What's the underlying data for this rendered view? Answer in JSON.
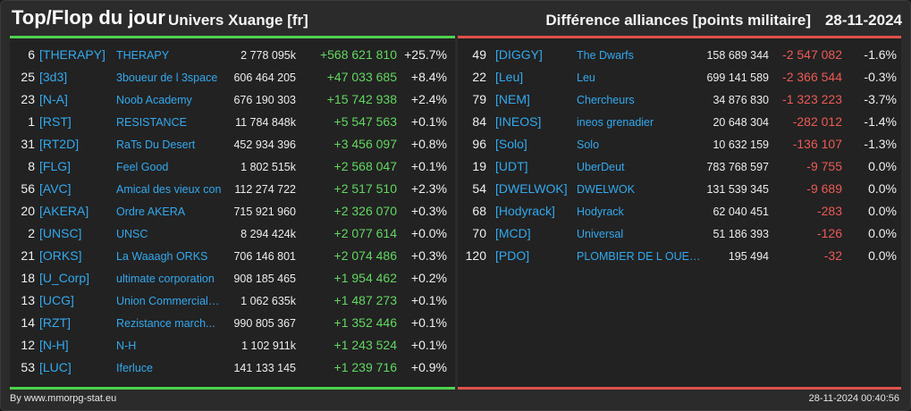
{
  "header": {
    "title": "Top/Flop du jour",
    "universe": "Univers Xuange [fr]",
    "subtitle": "Différence alliances [points militaire]",
    "date": "28-11-2024"
  },
  "colors": {
    "positive": "#62d861",
    "negative": "#ec5a55",
    "link": "#33a9ee",
    "top_border": "#4fd24f",
    "flop_border": "#e0514b"
  },
  "top": [
    {
      "rank": "6",
      "tag": "[THERAPY]",
      "name": "THERAPY",
      "points": "2 778 095k",
      "delta": "+568 621 810",
      "pct": "+25.7%"
    },
    {
      "rank": "25",
      "tag": "[3d3]",
      "name": "3boueur de l 3space",
      "points": "606 464 205",
      "delta": "+47 033 685",
      "pct": "+8.4%"
    },
    {
      "rank": "23",
      "tag": "[N-A]",
      "name": "Noob Academy",
      "points": "676 190 303",
      "delta": "+15 742 938",
      "pct": "+2.4%"
    },
    {
      "rank": "1",
      "tag": "[RST]",
      "name": "RESISTANCE",
      "points": "11 784 848k",
      "delta": "+5 547 563",
      "pct": "+0.1%"
    },
    {
      "rank": "31",
      "tag": "[RT2D]",
      "name": "RaTs Du Desert",
      "points": "452 934 396",
      "delta": "+3 456 097",
      "pct": "+0.8%"
    },
    {
      "rank": "8",
      "tag": "[FLG]",
      "name": "Feel Good",
      "points": "1 802 515k",
      "delta": "+2 568 047",
      "pct": "+0.1%"
    },
    {
      "rank": "56",
      "tag": "[AVC]",
      "name": "Amical des vieux con",
      "points": "112 274 722",
      "delta": "+2 517 510",
      "pct": "+2.3%"
    },
    {
      "rank": "20",
      "tag": "[AKERA]",
      "name": "Ordre AKERA",
      "points": "715 921 960",
      "delta": "+2 326 070",
      "pct": "+0.3%"
    },
    {
      "rank": "2",
      "tag": "[UNSC]",
      "name": "UNSC",
      "points": "8 294 424k",
      "delta": "+2 077 614",
      "pct": "+0.0%"
    },
    {
      "rank": "21",
      "tag": "[ORKS]",
      "name": "La Waaagh ORKS",
      "points": "706 146 801",
      "delta": "+2 074 486",
      "pct": "+0.3%"
    },
    {
      "rank": "18",
      "tag": "[U_Corp]",
      "name": "ultimate corporation",
      "points": "908 185 465",
      "delta": "+1 954 462",
      "pct": "+0.2%"
    },
    {
      "rank": "13",
      "tag": "[UCG]",
      "name": "Union Commerciale...",
      "points": "1 062 635k",
      "delta": "+1 487 273",
      "pct": "+0.1%"
    },
    {
      "rank": "14",
      "tag": "[RZT]",
      "name": "Rezistance march...",
      "points": "990 805 367",
      "delta": "+1 352 446",
      "pct": "+0.1%"
    },
    {
      "rank": "12",
      "tag": "[N-H]",
      "name": "N-H",
      "points": "1 102 911k",
      "delta": "+1 243 524",
      "pct": "+0.1%"
    },
    {
      "rank": "53",
      "tag": "[LUC]",
      "name": "Iferluce",
      "points": "141 133 145",
      "delta": "+1 239 716",
      "pct": "+0.9%"
    }
  ],
  "flop": [
    {
      "rank": "49",
      "tag": "[DIGGY]",
      "name": "The Dwarfs",
      "points": "158 689 344",
      "delta": "-2 547 082",
      "pct": "-1.6%"
    },
    {
      "rank": "22",
      "tag": "[Leu]",
      "name": "Leu",
      "points": "699 141 589",
      "delta": "-2 366 544",
      "pct": "-0.3%"
    },
    {
      "rank": "79",
      "tag": "[NEM]",
      "name": "Chercheurs",
      "points": "34 876 830",
      "delta": "-1 323 223",
      "pct": "-3.7%"
    },
    {
      "rank": "84",
      "tag": "[INEOS]",
      "name": "ineos grenadier",
      "points": "20 648 304",
      "delta": "-282 012",
      "pct": "-1.4%"
    },
    {
      "rank": "96",
      "tag": "[Solo]",
      "name": "Solo",
      "points": "10 632 159",
      "delta": "-136 107",
      "pct": "-1.3%"
    },
    {
      "rank": "19",
      "tag": "[UDT]",
      "name": "UberDeut",
      "points": "783 768 597",
      "delta": "-9 755",
      "pct": "0.0%"
    },
    {
      "rank": "54",
      "tag": "[DWELWOK]",
      "name": "DWELWOK",
      "points": "131 539 345",
      "delta": "-9 689",
      "pct": "0.0%"
    },
    {
      "rank": "68",
      "tag": "[Hodyrack]",
      "name": "Hodyrack",
      "points": "62 040 451",
      "delta": "-283",
      "pct": "0.0%"
    },
    {
      "rank": "70",
      "tag": "[MCD]",
      "name": "Universal",
      "points": "51 186 393",
      "delta": "-126",
      "pct": "0.0%"
    },
    {
      "rank": "120",
      "tag": "[PDO]",
      "name": "PLOMBIER DE L OUEST",
      "points": "195 494",
      "delta": "-32",
      "pct": "0.0%"
    }
  ],
  "footer": {
    "source": "By www.mmorpg-stat.eu",
    "timestamp": "28-11-2024 00:40:56"
  }
}
